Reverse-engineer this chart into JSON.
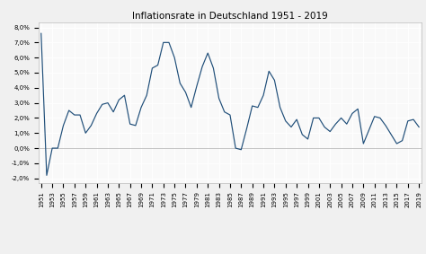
{
  "title": "Inflationsrate in Deutschland 1951 - 2019",
  "years": [
    1951,
    1952,
    1953,
    1954,
    1955,
    1956,
    1957,
    1958,
    1959,
    1960,
    1961,
    1962,
    1963,
    1964,
    1965,
    1966,
    1967,
    1968,
    1969,
    1970,
    1971,
    1972,
    1973,
    1974,
    1975,
    1976,
    1977,
    1978,
    1979,
    1980,
    1981,
    1982,
    1983,
    1984,
    1985,
    1986,
    1987,
    1988,
    1989,
    1990,
    1991,
    1992,
    1993,
    1994,
    1995,
    1996,
    1997,
    1998,
    1999,
    2000,
    2001,
    2002,
    2003,
    2004,
    2005,
    2006,
    2007,
    2008,
    2009,
    2010,
    2011,
    2012,
    2013,
    2014,
    2015,
    2016,
    2017,
    2018,
    2019
  ],
  "values": [
    7.6,
    -1.8,
    0.0,
    0.0,
    1.5,
    2.5,
    2.2,
    2.2,
    1.0,
    1.5,
    2.3,
    2.9,
    3.0,
    2.4,
    3.2,
    3.5,
    1.6,
    1.5,
    2.7,
    3.5,
    5.3,
    5.5,
    7.0,
    7.0,
    6.0,
    4.3,
    3.7,
    2.7,
    4.1,
    5.4,
    6.3,
    5.3,
    3.3,
    2.4,
    2.2,
    0.0,
    -0.1,
    1.3,
    2.8,
    2.7,
    3.5,
    5.1,
    4.5,
    2.7,
    1.8,
    1.4,
    1.9,
    0.9,
    0.6,
    2.0,
    2.0,
    1.4,
    1.1,
    1.6,
    2.0,
    1.6,
    2.3,
    2.6,
    0.3,
    1.2,
    2.1,
    2.0,
    1.5,
    0.9,
    0.3,
    0.5,
    1.8,
    1.9,
    1.4
  ],
  "line_color": "#1f4e79",
  "plot_bg_color": "#f9f9f9",
  "fig_bg_color": "#f0f0f0",
  "grid_color": "#ffffff",
  "ytick_labels": [
    "-2,0%",
    "-1,0%",
    "0,0%",
    "1,0%",
    "2,0%",
    "3,0%",
    "4,0%",
    "5,0%",
    "6,0%",
    "7,0%",
    "8,0%"
  ],
  "ytick_values": [
    -2.0,
    -1.0,
    0.0,
    1.0,
    2.0,
    3.0,
    4.0,
    5.0,
    6.0,
    7.0,
    8.0
  ],
  "ylim": [
    -2.3,
    8.3
  ],
  "title_fontsize": 7.5,
  "tick_fontsize": 5.0,
  "line_width": 0.85
}
